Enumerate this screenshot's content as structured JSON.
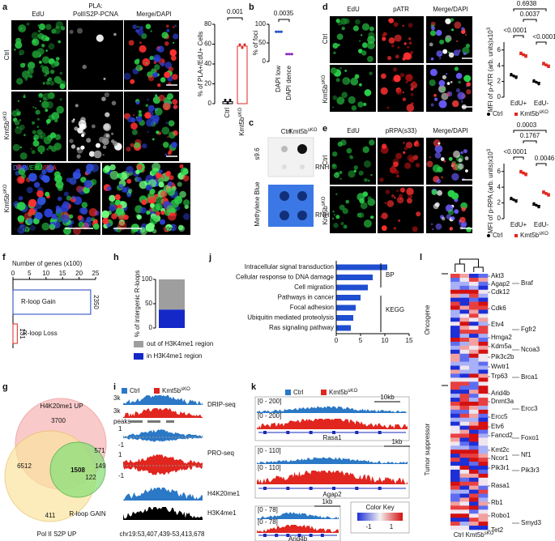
{
  "genotype": {
    "base": "Kmt5b",
    "sup": "sKO"
  },
  "ctrl": "Ctrl",
  "colors": {
    "ctrl": "#2a78c6",
    "ko": "#e0261f"
  },
  "a": {
    "label": "a",
    "titles": [
      "EdU",
      "PLA:",
      "PolIIS2P-PCNA",
      "Merge/DAPI"
    ],
    "stain": [
      "DAPI",
      "/EdU",
      "/PLA"
    ],
    "phases": [
      "early S",
      "late S"
    ],
    "chart": {
      "type": "bar",
      "ylabel": "% of PLA+/EdU+ Cells",
      "values": [
        2,
        58
      ],
      "ylim": [
        0,
        80
      ],
      "yticks": [
        0,
        20,
        40,
        60,
        80
      ],
      "p": "0.001"
    }
  },
  "b": {
    "label": "b",
    "chart": {
      "type": "dot",
      "ylabel": "% of foci",
      "categories": [
        "DAPI low",
        "DAPI dence"
      ],
      "values": [
        80,
        20
      ],
      "ylim": [
        0,
        100
      ],
      "yticks": [
        0,
        50,
        100
      ],
      "p": "0.0035"
    }
  },
  "c": {
    "label": "c",
    "rows": [
      "s9.6",
      "Methylene Blue"
    ],
    "treatment": "RNH"
  },
  "d": {
    "label": "d",
    "titles": [
      "EdU",
      "pATR",
      "Merge/DAPI"
    ],
    "chart": {
      "type": "dot",
      "ylabel": "MFI of p-ATR (arb. units)x10",
      "ylabel_sup": "3",
      "categories": [
        "EdU+",
        "EdU-"
      ],
      "series": [
        {
          "color": "#000000",
          "values": [
            2.7,
            1.9
          ]
        },
        {
          "color": "#e0261f",
          "values": [
            5.4,
            4.1
          ]
        }
      ],
      "ylim": [
        0,
        7
      ],
      "yticks": [
        0,
        2,
        4,
        6
      ],
      "p": [
        "0.6938",
        "0.0037",
        "<0.0001",
        "<0.0001"
      ]
    }
  },
  "e": {
    "label": "e",
    "titles": [
      "EdU",
      "pRPA(s33)",
      "Merge/DAPI"
    ],
    "chart": {
      "type": "dot",
      "ylabel": "MFI of p-RPA (arb. units)x10",
      "ylabel_sup": "3",
      "categories": [
        "EdU+",
        "EdU-"
      ],
      "series": [
        {
          "color": "#000000",
          "values": [
            2.4,
            1.7
          ]
        },
        {
          "color": "#e0261f",
          "values": [
            5.8,
            3.2
          ]
        }
      ],
      "ylim": [
        0,
        7
      ],
      "yticks": [
        0,
        2,
        4,
        6
      ],
      "p": [
        "0.0003",
        "0.1767",
        "<0.0001",
        "0.0046"
      ]
    }
  },
  "f": {
    "label": "f",
    "chart": {
      "type": "hbar",
      "xlabel": "Number of genes (x100)",
      "categories": [
        "R-loop Gain",
        "R-loop Loss"
      ],
      "values": [
        23.5,
        1.31
      ],
      "value_labels": [
        "2350",
        "131"
      ],
      "colors": [
        "#1f3fbf",
        "#e0261f"
      ],
      "xlim": [
        0,
        25
      ],
      "xticks": [
        0,
        5,
        10,
        15,
        20,
        25
      ]
    }
  },
  "h": {
    "label": "h",
    "chart": {
      "type": "stacked_bar",
      "ylabel": "% of intergenic R-loops",
      "series": [
        {
          "name": "in H3K4me1 region",
          "color": "#1428c8",
          "values": [
            38
          ]
        },
        {
          "name": "out of H3K4me1 region",
          "color": "#9e9e9e",
          "values": [
            62
          ]
        }
      ],
      "ylim": [
        0,
        100
      ],
      "yticks": [
        0,
        50,
        100
      ]
    }
  },
  "j": {
    "label": "j",
    "chart": {
      "type": "hbar",
      "categories": [
        "Intracellular signal transduction",
        "Cellular response to DNA damage",
        "Cell migration",
        "Pathways in cancer",
        "Focal adhesion",
        "Ubiquitin mediated proteolysis",
        "Ras signaling pathway"
      ],
      "values": [
        10.5,
        7.5,
        6.5,
        5,
        4,
        3.5,
        3
      ],
      "color": "#1f4fd0",
      "xlim": [
        0,
        15
      ],
      "xticks": [
        0,
        5,
        10,
        15
      ],
      "groups": [
        "BP",
        "KEGG"
      ]
    }
  },
  "g": {
    "label": "g",
    "sets": [
      "H4K20me1 UP",
      "R-loop GAIN",
      "Pol II S2P UP"
    ],
    "counts": [
      "3700",
      "6512",
      "1508",
      "571",
      "149",
      "122",
      "411"
    ]
  },
  "i": {
    "label": "i",
    "scales": [
      "3k",
      "3k",
      "1",
      "-1",
      "1",
      "-1"
    ],
    "peaks": "peaks",
    "tracks": [
      "DRIP-seq",
      "PRO-seq",
      "H4K20me1",
      "H3K4me1"
    ],
    "locus": "chr19:53,407,439-53,413,678"
  },
  "k": {
    "label": "k",
    "boxes": [
      {
        "ranges": [
          "[0 - 200]",
          "[0 - 200]"
        ],
        "gene": "Rasa1",
        "scale": "10kb"
      },
      {
        "ranges": [
          "[0 - 110]",
          "[0 - 110]"
        ],
        "gene": "Agap2",
        "scale": "1kb"
      },
      {
        "ranges": [
          "[0 - 78]",
          "[0 - 78]"
        ],
        "gene": "Arid4b",
        "scale": "1kb"
      }
    ]
  },
  "l": {
    "label": "l",
    "groups": [
      "Oncogene",
      "Tumor suppressor"
    ],
    "genes_left": [
      "Akt3",
      "Agap2",
      "Cdk12",
      "Cdk6",
      "Etv4",
      "Hmga2",
      "Kdm5a",
      "Pik3c2b",
      "Wwtr1",
      "Trp63",
      "Arid4b",
      "Dnmt3a",
      "Ercc5",
      "Etv6",
      "Fancd2",
      "Kmt2c",
      "Ncor1",
      "Pik3r1",
      "Rasa1",
      "Rb1",
      "Robo1",
      "Tet2"
    ],
    "genes_right": [
      "Braf",
      "Fgfr2",
      "Ncoa3",
      "Brca1",
      "Ercc3",
      "Foxo1",
      "Nf1",
      "Pik3r3",
      "Smyd3"
    ],
    "key": {
      "title": "Color Key",
      "ticks": [
        "-1",
        "1"
      ]
    }
  }
}
